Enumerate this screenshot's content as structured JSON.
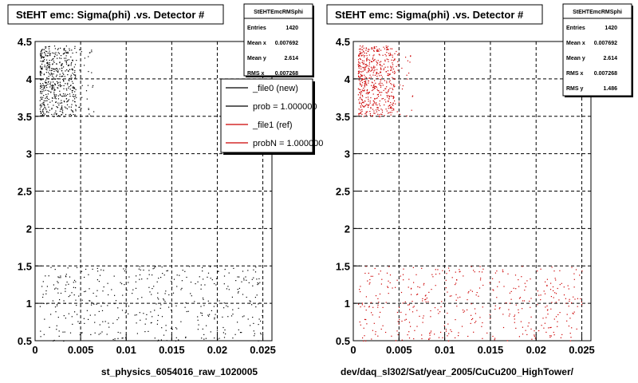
{
  "chart_data": [
    {
      "type": "scatter",
      "title": "StEHT emc: Sigma(phi) .vs. Detector #",
      "xlabel": "st_physics_6054016_raw_1020005",
      "ylabel": "",
      "xlim": [
        0,
        0.026
      ],
      "ylim": [
        0.5,
        4.5
      ],
      "xticks": [
        "0",
        "0.005",
        "0.01",
        "0.015",
        "0.02",
        "0.025"
      ],
      "yticks": [
        "0.5",
        "1",
        "1.5",
        "2",
        "2.5",
        "3",
        "3.5",
        "4",
        "4.5"
      ],
      "grid": true,
      "point_color": "#000000",
      "clusters": [
        {
          "x": [
            0.0005,
            0.0045
          ],
          "y": [
            3.5,
            4.45
          ],
          "density": "high"
        },
        {
          "x": [
            0.0045,
            0.0065
          ],
          "y": [
            3.5,
            4.4
          ],
          "density": "low"
        },
        {
          "x": [
            0.0005,
            0.025
          ],
          "y": [
            0.5,
            1.5
          ],
          "density": "medium"
        }
      ],
      "stats": {
        "title": "StEHTEmcRMSphi",
        "rows": [
          {
            "label": "Entries",
            "value": "1420"
          },
          {
            "label": "Mean x",
            "value": "0.007692"
          },
          {
            "label": "Mean y",
            "value": "2.614"
          },
          {
            "label": "RMS x",
            "value": "0.007268"
          }
        ]
      },
      "legend": {
        "position": "top-right",
        "entries": [
          {
            "label": "_file0 (new)",
            "color": "#000000"
          },
          {
            "label": "prob = 1.000000",
            "color": "#000000"
          },
          {
            "label": "_file1 (ref)",
            "color": "#cc0000"
          },
          {
            "label": "probN = 1.000000",
            "color": "#cc0000"
          }
        ]
      }
    },
    {
      "type": "scatter",
      "title": "StEHT emc: Sigma(phi) .vs. Detector #",
      "xlabel": "dev/daq_sl302/Sat/year_2005/CuCu200_HighTower/",
      "ylabel": "",
      "xlim": [
        0,
        0.026
      ],
      "ylim": [
        0.5,
        4.5
      ],
      "xticks": [
        "0",
        "0.005",
        "0.01",
        "0.015",
        "0.02",
        "0.025"
      ],
      "yticks": [
        "0.5",
        "1",
        "1.5",
        "2",
        "2.5",
        "3",
        "3.5",
        "4",
        "4.5"
      ],
      "grid": true,
      "point_color": "#cc0000",
      "clusters": [
        {
          "x": [
            0.0005,
            0.0045
          ],
          "y": [
            3.5,
            4.45
          ],
          "density": "high"
        },
        {
          "x": [
            0.0045,
            0.0065
          ],
          "y": [
            3.5,
            4.4
          ],
          "density": "low"
        },
        {
          "x": [
            0.0005,
            0.025
          ],
          "y": [
            0.5,
            1.5
          ],
          "density": "medium"
        }
      ],
      "stats": {
        "title": "StEHTEmcRMSphi",
        "rows": [
          {
            "label": "Entries",
            "value": "1420"
          },
          {
            "label": "Mean x",
            "value": "0.007692"
          },
          {
            "label": "Mean y",
            "value": "2.614"
          },
          {
            "label": "RMS x",
            "value": "0.007268"
          },
          {
            "label": "RMS y",
            "value": "1.486"
          }
        ]
      }
    }
  ]
}
